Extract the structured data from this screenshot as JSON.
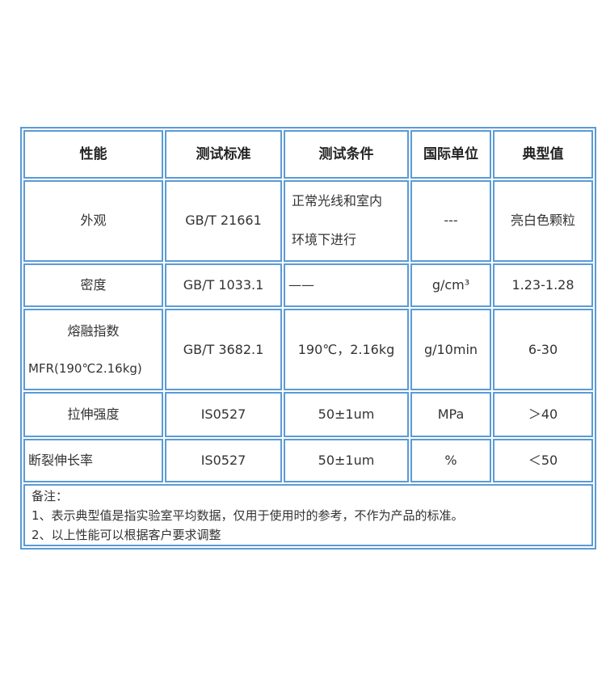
{
  "table": {
    "headers": [
      "性能",
      "测试标准",
      "测试条件",
      "国际单位",
      "典型值"
    ],
    "rows": [
      {
        "property": "外观",
        "standard": "GB/T 21661",
        "condition_line1": "正常光线和室内",
        "condition_line2": "环境下进行",
        "unit": "---",
        "value": "亮白色颗粒"
      },
      {
        "property": "密度",
        "standard": "GB/T 1033.1",
        "condition": "——",
        "unit": "g/cm³",
        "value": "1.23-1.28"
      },
      {
        "property_line1": "熔融指数",
        "property_line2": "MFR(190℃2.16kg)",
        "standard": "GB/T 3682.1",
        "condition": "190℃，2.16kg",
        "unit": "g/10min",
        "value": "6-30"
      },
      {
        "property": "拉伸强度",
        "standard": "IS0527",
        "condition": "50±1um",
        "unit": "MPa",
        "value": "＞40"
      },
      {
        "property": "断裂伸长率",
        "standard": "IS0527",
        "condition": "50±1um",
        "unit": "%",
        "value": "＜50"
      }
    ],
    "notes": {
      "title": "备注：",
      "line1": "1、表示典型值是指实验室平均数据，仅用于使用时的参考，不作为产品的标准。",
      "line2": "2、以上性能可以根据客户要求调整"
    }
  }
}
